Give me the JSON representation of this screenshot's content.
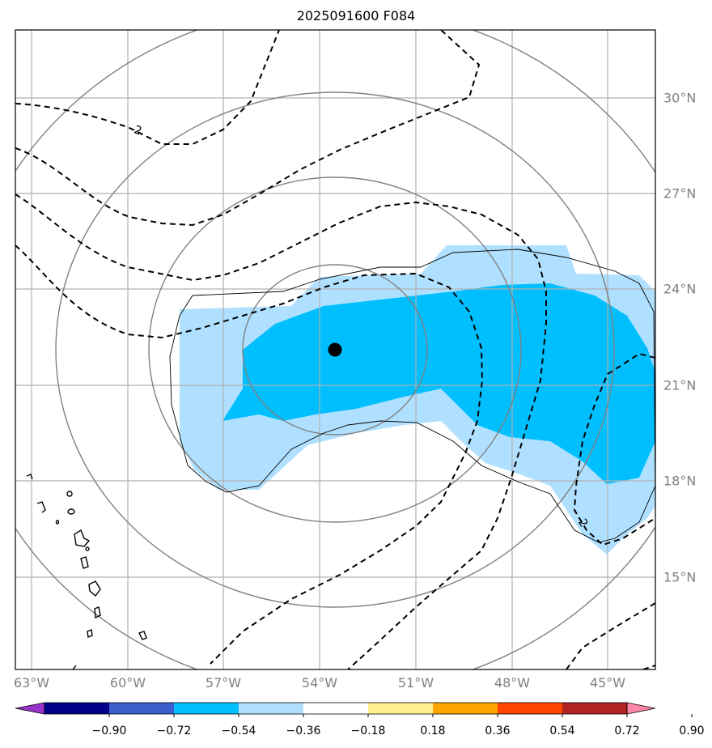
{
  "title": "2025091600 F084",
  "lon_labels": [
    "63°W",
    "60°W",
    "57°W",
    "54°W",
    "51°W",
    "48°W",
    "45°W"
  ],
  "lat_labels": [
    "30°N",
    "27°N",
    "24°N",
    "21°N",
    "18°N",
    "15°N"
  ],
  "contour_label": "-2",
  "center_marker": "storm-center",
  "colorbar": {
    "ticks": [
      "−0.90",
      "−0.72",
      "−0.54",
      "−0.36",
      "−0.18",
      "0.18",
      "0.36",
      "0.54",
      "0.72",
      "0.90"
    ],
    "colors": [
      "#9932cc",
      "#00008b",
      "#3a5fcd",
      "#00bfff",
      "#b0e0ff",
      "#ffffff",
      "#ffee90",
      "#ffa500",
      "#ff4500",
      "#b22222",
      "#ff88aa"
    ]
  },
  "fill_colors": {
    "light": "#b0e0ff",
    "medium": "#00bfff"
  }
}
